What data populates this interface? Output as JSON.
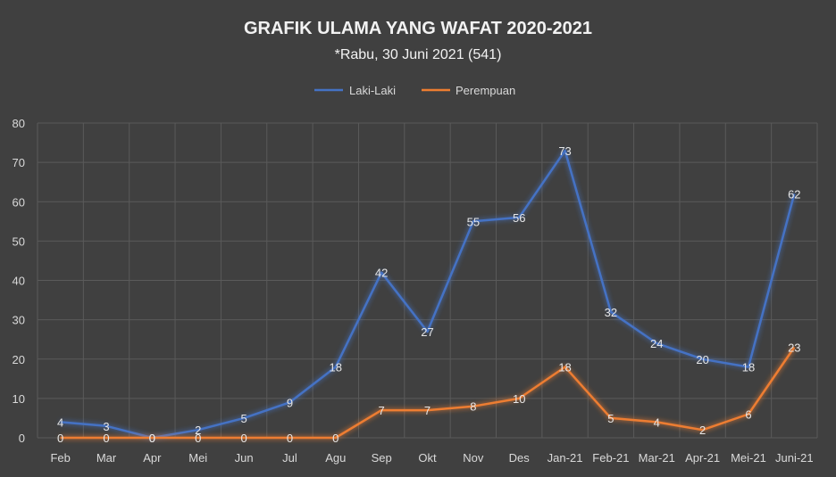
{
  "chart_data": {
    "type": "line",
    "title": "GRAFIK ULAMA YANG WAFAT 2020-2021",
    "subtitle": "*Rabu, 30 Juni 2021 (541)",
    "categories": [
      "Feb",
      "Mar",
      "Apr",
      "Mei",
      "Jun",
      "Jul",
      "Agu",
      "Sep",
      "Okt",
      "Nov",
      "Des",
      "Jan-21",
      "Feb-21",
      "Mar-21",
      "Apr-21",
      "Mei-21",
      "Juni-21"
    ],
    "series": [
      {
        "name": "Laki-Laki",
        "color": "#4472c4",
        "values": [
          4,
          3,
          0,
          2,
          5,
          9,
          18,
          42,
          27,
          55,
          56,
          73,
          32,
          24,
          20,
          18,
          62
        ]
      },
      {
        "name": "Perempuan",
        "color": "#ed7d31",
        "values": [
          0,
          0,
          0,
          0,
          0,
          0,
          0,
          7,
          7,
          8,
          10,
          18,
          5,
          4,
          2,
          6,
          23
        ]
      }
    ],
    "ylim": [
      0,
      80
    ],
    "yticks": [
      0,
      10,
      20,
      30,
      40,
      50,
      60,
      70,
      80
    ],
    "grid": true,
    "legend": "top-center",
    "background": "#404040"
  }
}
